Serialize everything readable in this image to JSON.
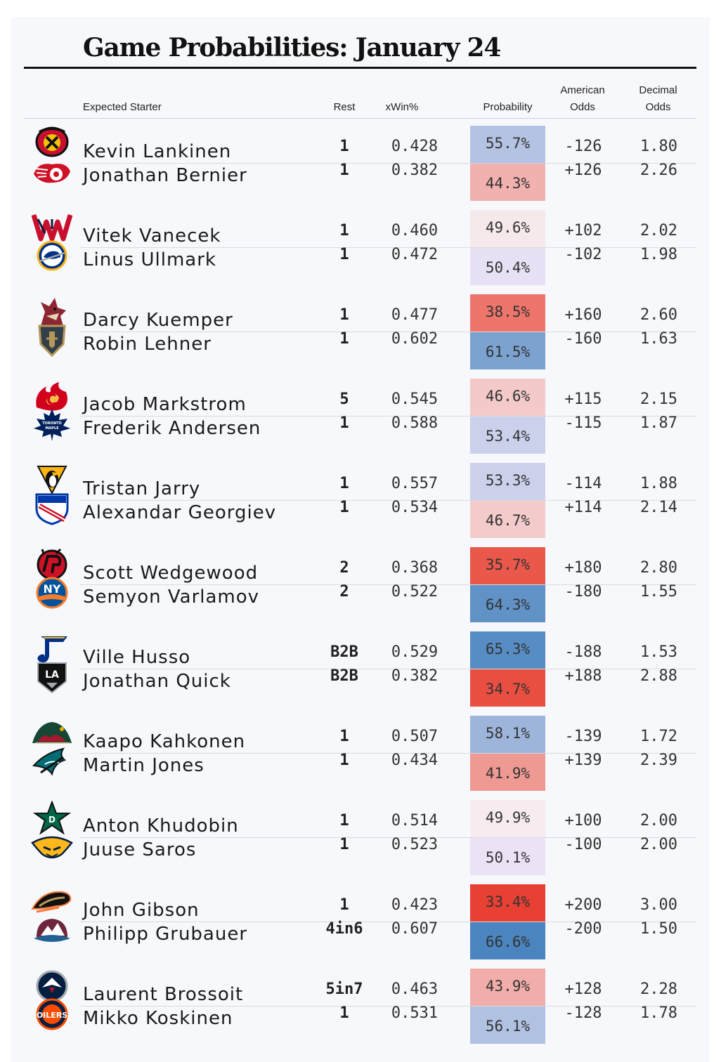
{
  "title": "Game Probabilities: January 24",
  "headers": {
    "starter": "Expected Starter",
    "rest": "Rest",
    "xwin": "xWin%",
    "probability": "Probability",
    "american": "American\nOdds",
    "decimal": "Decimal\nOdds"
  },
  "colors": {
    "blue": [
      70,
      131,
      190
    ],
    "red": [
      232,
      60,
      45
    ],
    "neutral": [
      246,
      237,
      240
    ]
  },
  "games": [
    {
      "top": {
        "logo": "chicago-blackhawks-logo",
        "goalie": "Kevin Lankinen",
        "rest": "1",
        "xwin": "0.428",
        "prob": "55.7%",
        "prob_value": 55.7,
        "american": "-126",
        "decimal": "1.80"
      },
      "bot": {
        "logo": "detroit-red-wings-logo",
        "goalie": "Jonathan Bernier",
        "rest": "1",
        "xwin": "0.382",
        "prob": "44.3%",
        "prob_value": 44.3,
        "american": "+126",
        "decimal": "2.26"
      }
    },
    {
      "top": {
        "logo": "washington-capitals-logo",
        "goalie": "Vitek Vanecek",
        "rest": "1",
        "xwin": "0.460",
        "prob": "49.6%",
        "prob_value": 49.6,
        "american": "+102",
        "decimal": "2.02"
      },
      "bot": {
        "logo": "buffalo-sabres-logo",
        "goalie": "Linus Ullmark",
        "rest": "1",
        "xwin": "0.472",
        "prob": "50.4%",
        "prob_value": 50.4,
        "american": "-102",
        "decimal": "1.98"
      }
    },
    {
      "top": {
        "logo": "arizona-coyotes-logo",
        "goalie": "Darcy Kuemper",
        "rest": "1",
        "xwin": "0.477",
        "prob": "38.5%",
        "prob_value": 38.5,
        "american": "+160",
        "decimal": "2.60"
      },
      "bot": {
        "logo": "vegas-golden-knights-logo",
        "goalie": "Robin Lehner",
        "rest": "1",
        "xwin": "0.602",
        "prob": "61.5%",
        "prob_value": 61.5,
        "american": "-160",
        "decimal": "1.63"
      }
    },
    {
      "top": {
        "logo": "calgary-flames-logo",
        "goalie": "Jacob Markstrom",
        "rest": "5",
        "xwin": "0.545",
        "prob": "46.6%",
        "prob_value": 46.6,
        "american": "+115",
        "decimal": "2.15"
      },
      "bot": {
        "logo": "toronto-maple-leafs-logo",
        "goalie": "Frederik Andersen",
        "rest": "1",
        "xwin": "0.588",
        "prob": "53.4%",
        "prob_value": 53.4,
        "american": "-115",
        "decimal": "1.87"
      }
    },
    {
      "top": {
        "logo": "pittsburgh-penguins-logo",
        "goalie": "Tristan Jarry",
        "rest": "1",
        "xwin": "0.557",
        "prob": "53.3%",
        "prob_value": 53.3,
        "american": "-114",
        "decimal": "1.88"
      },
      "bot": {
        "logo": "new-york-rangers-logo",
        "goalie": "Alexandar Georgiev",
        "rest": "1",
        "xwin": "0.534",
        "prob": "46.7%",
        "prob_value": 46.7,
        "american": "+114",
        "decimal": "2.14"
      }
    },
    {
      "top": {
        "logo": "new-jersey-devils-logo",
        "goalie": "Scott Wedgewood",
        "rest": "2",
        "xwin": "0.368",
        "prob": "35.7%",
        "prob_value": 35.7,
        "american": "+180",
        "decimal": "2.80"
      },
      "bot": {
        "logo": "new-york-islanders-logo",
        "goalie": "Semyon Varlamov",
        "rest": "2",
        "xwin": "0.522",
        "prob": "64.3%",
        "prob_value": 64.3,
        "american": "-180",
        "decimal": "1.55"
      }
    },
    {
      "top": {
        "logo": "st-louis-blues-logo",
        "goalie": "Ville Husso",
        "rest": "B2B",
        "xwin": "0.529",
        "prob": "65.3%",
        "prob_value": 65.3,
        "american": "-188",
        "decimal": "1.53"
      },
      "bot": {
        "logo": "los-angeles-kings-logo",
        "goalie": "Jonathan Quick",
        "rest": "B2B",
        "xwin": "0.382",
        "prob": "34.7%",
        "prob_value": 34.7,
        "american": "+188",
        "decimal": "2.88"
      }
    },
    {
      "top": {
        "logo": "minnesota-wild-logo",
        "goalie": "Kaapo Kahkonen",
        "rest": "1",
        "xwin": "0.507",
        "prob": "58.1%",
        "prob_value": 58.1,
        "american": "-139",
        "decimal": "1.72"
      },
      "bot": {
        "logo": "san-jose-sharks-logo",
        "goalie": "Martin Jones",
        "rest": "1",
        "xwin": "0.434",
        "prob": "41.9%",
        "prob_value": 41.9,
        "american": "+139",
        "decimal": "2.39"
      }
    },
    {
      "top": {
        "logo": "dallas-stars-logo",
        "goalie": "Anton Khudobin",
        "rest": "1",
        "xwin": "0.514",
        "prob": "49.9%",
        "prob_value": 49.9,
        "american": "+100",
        "decimal": "2.00"
      },
      "bot": {
        "logo": "nashville-predators-logo",
        "goalie": "Juuse Saros",
        "rest": "1",
        "xwin": "0.523",
        "prob": "50.1%",
        "prob_value": 50.1,
        "american": "-100",
        "decimal": "2.00"
      }
    },
    {
      "top": {
        "logo": "anaheim-ducks-logo",
        "goalie": "John Gibson",
        "rest": "1",
        "xwin": "0.423",
        "prob": "33.4%",
        "prob_value": 33.4,
        "american": "+200",
        "decimal": "3.00"
      },
      "bot": {
        "logo": "colorado-avalanche-logo",
        "goalie": "Philipp Grubauer",
        "rest": "4in6",
        "xwin": "0.607",
        "prob": "66.6%",
        "prob_value": 66.6,
        "american": "-200",
        "decimal": "1.50"
      }
    },
    {
      "top": {
        "logo": "winnipeg-jets-logo",
        "goalie": "Laurent Brossoit",
        "rest": "5in7",
        "xwin": "0.463",
        "prob": "43.9%",
        "prob_value": 43.9,
        "american": "+128",
        "decimal": "2.28"
      },
      "bot": {
        "logo": "edmonton-oilers-logo",
        "goalie": "Mikko Koskinen",
        "rest": "1",
        "xwin": "0.531",
        "prob": "56.1%",
        "prob_value": 56.1,
        "american": "-128",
        "decimal": "1.78"
      }
    }
  ]
}
